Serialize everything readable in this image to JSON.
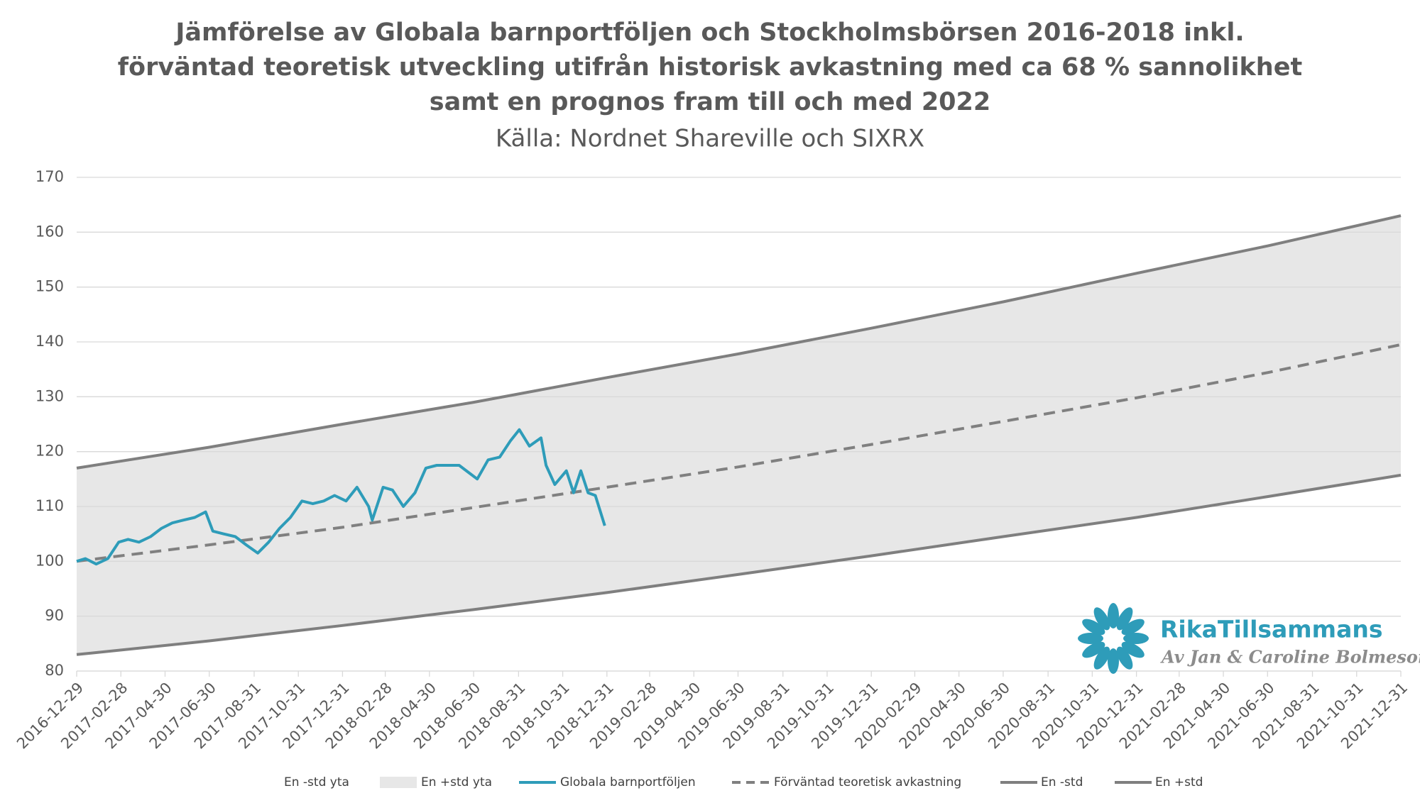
{
  "chart_data": {
    "type": "line",
    "title": [
      "Jämförelse av Globala barnportföljen och Stockholmsbörsen 2016-2018 inkl.",
      "förväntad teoretisk utveckling utifrån historisk avkastning med ca 68 % sannolikhet",
      "samt en prognos fram till och med 2022"
    ],
    "subtitle": "Källa: Nordnet Shareville och SIXRX",
    "brand": {
      "name": "RikaTillsammans",
      "byline": "Av Jan & Caroline Bolmeson"
    },
    "xlim": [
      "2016-12-29",
      "2021-12-31"
    ],
    "xticks": [
      "2016-12-29",
      "2017-02-28",
      "2017-04-30",
      "2017-06-30",
      "2017-08-31",
      "2017-10-31",
      "2017-12-31",
      "2018-02-28",
      "2018-04-30",
      "2018-06-30",
      "2018-08-31",
      "2018-10-31",
      "2018-12-31",
      "2019-02-28",
      "2019-04-30",
      "2019-06-30",
      "2019-08-31",
      "2019-10-31",
      "2019-12-31",
      "2020-02-29",
      "2020-04-30",
      "2020-06-30",
      "2020-08-31",
      "2020-10-31",
      "2020-12-31",
      "2021-02-28",
      "2021-04-30",
      "2021-06-30",
      "2021-08-31",
      "2021-10-31",
      "2021-12-31"
    ],
    "ylim": [
      80,
      170
    ],
    "yticks": [
      80,
      90,
      100,
      110,
      120,
      130,
      140,
      150,
      160,
      170
    ],
    "grid": true,
    "legend": "bottom",
    "series": [
      {
        "name": "En -std yta",
        "style": "area",
        "color": "#ffffff",
        "x": [
          "2016-12-29",
          "2017-06-30",
          "2017-12-31",
          "2018-06-30",
          "2018-12-31",
          "2019-06-30",
          "2019-12-31",
          "2020-06-30",
          "2020-12-31",
          "2021-06-30",
          "2021-12-31"
        ],
        "values": [
          83,
          85.5,
          88.3,
          91.2,
          94.3,
          97.6,
          101,
          104.5,
          108,
          111.8,
          115.7
        ]
      },
      {
        "name": "En +std yta",
        "style": "area",
        "stacked": true,
        "color": "#e7e7e7",
        "x": [
          "2016-12-29",
          "2017-06-30",
          "2017-12-31",
          "2018-06-30",
          "2018-12-31",
          "2019-06-30",
          "2019-12-31",
          "2020-06-30",
          "2020-12-31",
          "2021-06-30",
          "2021-12-31"
        ],
        "values": [
          34,
          35.3,
          36.7,
          37.8,
          39.2,
          40.2,
          41.5,
          42.8,
          44.5,
          45.7,
          47.3
        ]
      },
      {
        "name": "Globala barnportföljen",
        "style": "line",
        "color": "#2e9cb9",
        "x": [
          "2016-12-29",
          "2017-01-10",
          "2017-01-25",
          "2017-02-10",
          "2017-02-25",
          "2017-03-10",
          "2017-03-25",
          "2017-04-10",
          "2017-04-25",
          "2017-05-10",
          "2017-05-25",
          "2017-06-10",
          "2017-06-25",
          "2017-07-05",
          "2017-07-20",
          "2017-08-05",
          "2017-08-20",
          "2017-09-05",
          "2017-09-20",
          "2017-10-05",
          "2017-10-20",
          "2017-11-05",
          "2017-11-20",
          "2017-12-05",
          "2017-12-20",
          "2018-01-05",
          "2018-01-20",
          "2018-02-05",
          "2018-02-10",
          "2018-02-25",
          "2018-03-10",
          "2018-03-25",
          "2018-04-10",
          "2018-04-25",
          "2018-05-10",
          "2018-05-25",
          "2018-06-10",
          "2018-06-25",
          "2018-07-05",
          "2018-07-20",
          "2018-08-05",
          "2018-08-20",
          "2018-09-01",
          "2018-09-15",
          "2018-10-01",
          "2018-10-08",
          "2018-10-20",
          "2018-11-05",
          "2018-11-15",
          "2018-11-25",
          "2018-12-05",
          "2018-12-15",
          "2018-12-28"
        ],
        "values": [
          100,
          100.5,
          99.5,
          100.5,
          103.5,
          104,
          103.5,
          104.5,
          106,
          107,
          107.5,
          108,
          109,
          105.5,
          105,
          104.5,
          103,
          101.5,
          103.5,
          106,
          108,
          111,
          110.5,
          111,
          112,
          111,
          113.5,
          110,
          107.5,
          113.5,
          113,
          110,
          112.5,
          117,
          117.5,
          117.5,
          117.5,
          116,
          115,
          118.5,
          119,
          122,
          124,
          121,
          122.5,
          117.5,
          114,
          116.5,
          112.5,
          116.5,
          112.5,
          112,
          106.5
        ]
      },
      {
        "name": "Förväntad teoretisk avkastning",
        "style": "dashed",
        "color": "#808080",
        "x": [
          "2016-12-29",
          "2017-06-30",
          "2017-12-31",
          "2018-06-30",
          "2018-12-31",
          "2019-06-30",
          "2019-12-31",
          "2020-06-30",
          "2020-12-31",
          "2021-06-30",
          "2021-12-31"
        ],
        "values": [
          100,
          103,
          106.2,
          109.8,
          113.5,
          117.2,
          121.3,
          125.5,
          129.8,
          134.4,
          139.5
        ]
      },
      {
        "name": "En -std",
        "style": "line",
        "color": "#7f7f7f",
        "x": [
          "2016-12-29",
          "2017-06-30",
          "2017-12-31",
          "2018-06-30",
          "2018-12-31",
          "2019-06-30",
          "2019-12-31",
          "2020-06-30",
          "2020-12-31",
          "2021-06-30",
          "2021-12-31"
        ],
        "values": [
          83,
          85.5,
          88.3,
          91.2,
          94.3,
          97.6,
          101,
          104.5,
          108,
          111.8,
          115.7
        ]
      },
      {
        "name": "En +std",
        "style": "line",
        "color": "#7f7f7f",
        "x": [
          "2016-12-29",
          "2017-06-30",
          "2017-12-31",
          "2018-06-30",
          "2018-12-31",
          "2019-06-30",
          "2019-12-31",
          "2020-06-30",
          "2020-12-31",
          "2021-06-30",
          "2021-12-31"
        ],
        "values": [
          117,
          120.8,
          125,
          129,
          133.5,
          137.8,
          142.5,
          147.3,
          152.5,
          157.5,
          163
        ]
      }
    ]
  }
}
